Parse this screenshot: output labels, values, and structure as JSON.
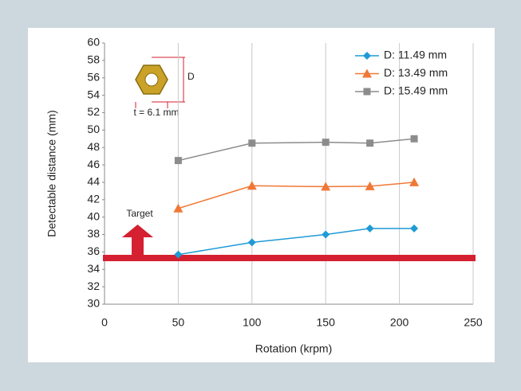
{
  "chart_data": {
    "type": "line",
    "xlabel": "Rotation (krpm)",
    "ylabel": "Detectable distance (mm)",
    "x": [
      50,
      100,
      150,
      180,
      210
    ],
    "series": [
      {
        "name": "D: 11.49 mm",
        "color": "#1f9ad6",
        "marker": "diamond",
        "values": [
          35.7,
          37.1,
          38.0,
          38.7,
          38.7
        ]
      },
      {
        "name": "D: 13.49 mm",
        "color": "#f07836",
        "marker": "triangle",
        "values": [
          41.0,
          43.6,
          43.5,
          43.55,
          44.0
        ]
      },
      {
        "name": "D: 15.49 mm",
        "color": "#8c8c8c",
        "marker": "square",
        "values": [
          46.5,
          48.5,
          48.6,
          48.5,
          49.0
        ]
      }
    ],
    "xlim": [
      0,
      250
    ],
    "xticks": [
      0,
      50,
      100,
      150,
      200,
      250
    ],
    "ylim": [
      30,
      60
    ],
    "yticks": [
      30,
      32,
      34,
      36,
      38,
      40,
      42,
      44,
      46,
      48,
      50,
      52,
      54,
      56,
      58,
      60
    ],
    "grid": "x",
    "legend": "top-right",
    "target": {
      "label": "Target",
      "value": 35.3,
      "color": "#d42030"
    },
    "annotations": [
      "D",
      "t = 6.1 mm"
    ]
  }
}
